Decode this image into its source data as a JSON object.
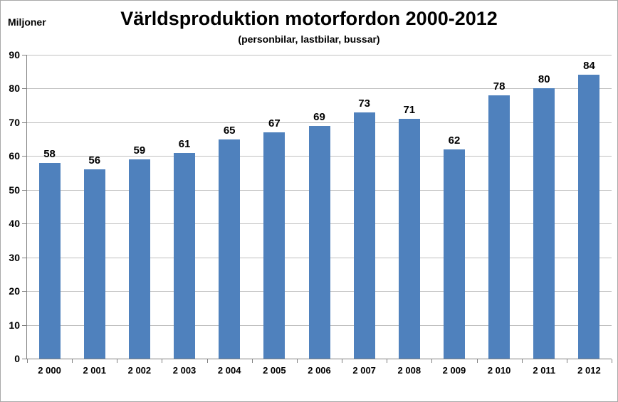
{
  "header": {
    "unit_label": "Miljoner",
    "title": "Världsproduktion motorfordon 2000-2012",
    "subtitle": "(personbilar, lastbilar, bussar)"
  },
  "chart_data": {
    "type": "bar",
    "title": "Världsproduktion motorfordon 2000-2012",
    "subtitle": "(personbilar, lastbilar, bussar)",
    "ylabel": "Miljoner",
    "xlabel": "",
    "categories": [
      "2 000",
      "2 001",
      "2 002",
      "2 003",
      "2 004",
      "2 005",
      "2 006",
      "2 007",
      "2 008",
      "2 009",
      "2 010",
      "2 011",
      "2 012"
    ],
    "values": [
      58,
      56,
      59,
      61,
      65,
      67,
      69,
      73,
      71,
      62,
      78,
      80,
      84
    ],
    "data_labels_shown": true,
    "ylim": [
      0,
      90
    ],
    "ytick_interval": 10,
    "yticks": [
      0,
      10,
      20,
      30,
      40,
      50,
      60,
      70,
      80,
      90
    ],
    "grid": true,
    "legend": "none",
    "colors": {
      "bar": "#4f81bd",
      "gridline": "#c0c0c0",
      "axis": "#808080",
      "text": "#000000",
      "background": "#ffffff"
    }
  }
}
